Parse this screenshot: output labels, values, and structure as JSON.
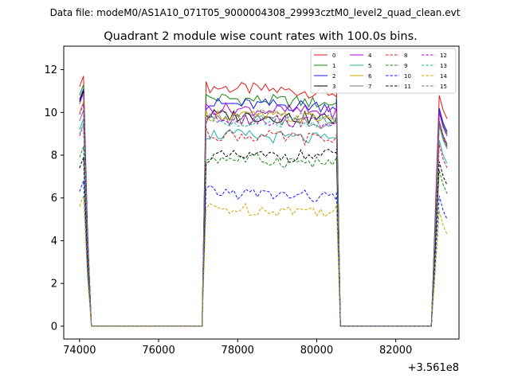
{
  "figure": {
    "suptitle": "Data file: modeM0/AS1A10_071T05_9000004308_29993cztM0_level2_quad_clean.evt",
    "title": "Quadrant 2 module wise count rates with 100.0s bins.",
    "offset_label": "+3.561e8"
  },
  "chart_data": {
    "type": "line",
    "title": "Quadrant 2 module wise count rates with 100.0s bins.",
    "xlabel": "",
    "ylabel": "",
    "x_offset": 356100000,
    "xlim": [
      73600,
      83600
    ],
    "ylim": [
      -0.6,
      13.1
    ],
    "xticks": [
      74000,
      76000,
      78000,
      80000,
      82000
    ],
    "xtick_labels": [
      "74000",
      "76000",
      "78000",
      "80000",
      "82000"
    ],
    "yticks": [
      0,
      2,
      4,
      6,
      8,
      10,
      12
    ],
    "ytick_labels": [
      "0",
      "2",
      "4",
      "6",
      "8",
      "10",
      "12"
    ],
    "grid": false,
    "legend_position": "top-right",
    "legend_columns": 4,
    "segments": [
      {
        "x_start": 74000,
        "x_end": 74300,
        "step": 100
      },
      {
        "x_start": 77100,
        "x_end": 80600,
        "step": 100
      },
      {
        "x_start": 82900,
        "x_end": 83300,
        "step": 100
      }
    ],
    "zero_spans": [
      [
        74300,
        77100
      ],
      [
        80600,
        82900
      ]
    ],
    "series": [
      {
        "name": "0",
        "color": "#e31a1c",
        "dash": "solid",
        "levels": [
          11.4,
          11.2,
          10.9,
          10.5
        ]
      },
      {
        "name": "1",
        "color": "#118811",
        "dash": "solid",
        "levels": [
          11.0,
          10.7,
          10.4,
          9.8
        ]
      },
      {
        "name": "2",
        "color": "#1a1aff",
        "dash": "solid",
        "levels": [
          10.8,
          10.4,
          10.3,
          9.9
        ]
      },
      {
        "name": "3",
        "color": "#000000",
        "dash": "solid",
        "levels": [
          10.7,
          9.9,
          9.7,
          9.3
        ]
      },
      {
        "name": "4",
        "color": "#b300d6",
        "dash": "solid",
        "levels": [
          10.6,
          10.2,
          10.0,
          9.7
        ]
      },
      {
        "name": "5",
        "color": "#20b2aa",
        "dash": "solid",
        "levels": [
          9.4,
          9.0,
          8.7,
          8.4
        ]
      },
      {
        "name": "6",
        "color": "#c8a800",
        "dash": "solid",
        "levels": [
          10.2,
          9.9,
          9.7,
          9.2
        ]
      },
      {
        "name": "7",
        "color": "#777777",
        "dash": "solid",
        "levels": [
          9.8,
          9.7,
          9.5,
          9.1
        ]
      },
      {
        "name": "8",
        "color": "#e31a1c",
        "dash": "dashed",
        "levels": [
          9.1,
          9.0,
          8.7,
          8.2
        ]
      },
      {
        "name": "9",
        "color": "#118811",
        "dash": "dashed",
        "levels": [
          8.1,
          7.9,
          7.6,
          7.0
        ]
      },
      {
        "name": "10",
        "color": "#1a1aff",
        "dash": "dashed",
        "levels": [
          6.5,
          6.3,
          6.0,
          5.8
        ]
      },
      {
        "name": "11",
        "color": "#000000",
        "dash": "dashed",
        "levels": [
          7.6,
          7.9,
          8.0,
          7.4
        ]
      },
      {
        "name": "12",
        "color": "#b300d6",
        "dash": "dashed",
        "levels": [
          10.1,
          9.8,
          9.5,
          9.2
        ]
      },
      {
        "name": "13",
        "color": "#20b2aa",
        "dash": "dashed",
        "levels": [
          9.2,
          9.6,
          9.6,
          9.1
        ]
      },
      {
        "name": "14",
        "color": "#c8a800",
        "dash": "dashed",
        "levels": [
          5.8,
          5.5,
          5.4,
          5.1
        ]
      },
      {
        "name": "15",
        "color": "#777777",
        "dash": "dashed",
        "levels": [
          10.6,
          10.0,
          9.7,
          9.3
        ]
      }
    ]
  }
}
